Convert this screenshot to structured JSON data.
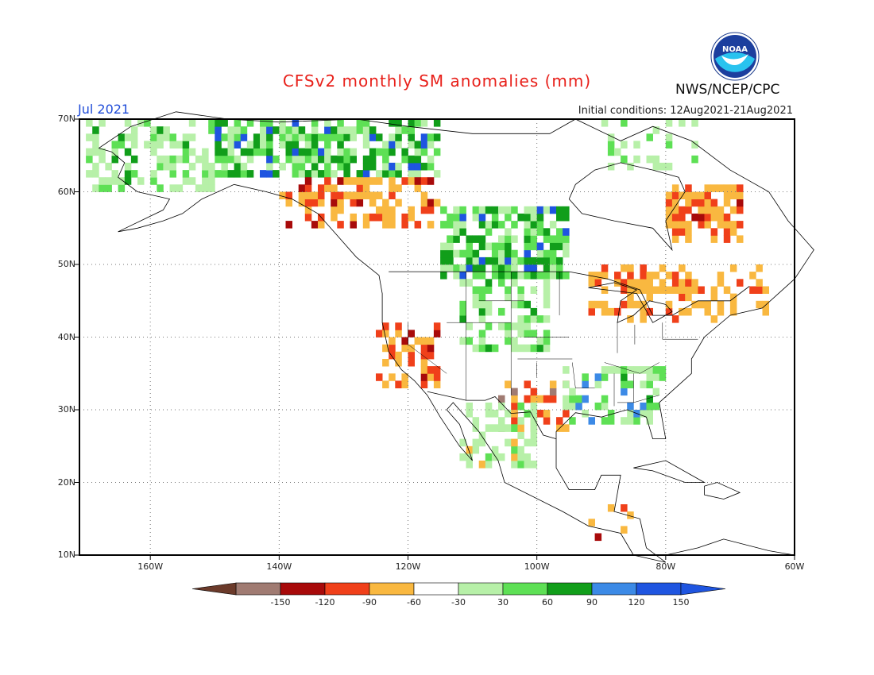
{
  "header": {
    "title": "CFSv2 monthly SM anomalies (mm)",
    "month": "Jul 2021",
    "initial_conditions": "Initial conditions: 12Aug2021-21Aug2021",
    "agency": "NWS/NCEP/CPC",
    "logo_text": "NOAA"
  },
  "map": {
    "projection": "cylindrical",
    "lon_range": [
      -171,
      -60
    ],
    "lat_range": [
      10,
      70
    ],
    "lat_labels": [
      "70N",
      "60N",
      "50N",
      "40N",
      "30N",
      "20N",
      "10N"
    ],
    "lon_labels": [
      "160W",
      "140W",
      "120W",
      "100W",
      "80W",
      "60W"
    ],
    "gridlines": "dotted"
  },
  "colorbar": {
    "labels": [
      "-150",
      "-120",
      "-90",
      "-60",
      "-30",
      "30",
      "60",
      "90",
      "120",
      "150"
    ],
    "colors": [
      "#6b3a2a",
      "#a07b72",
      "#a80a0a",
      "#f0401a",
      "#f9b840",
      "#ffffff",
      "#b7f0a8",
      "#5ee055",
      "#119e1a",
      "#3c8ae6",
      "#1f55e0"
    ]
  },
  "chart_data": {
    "type": "heatmap",
    "title": "CFSv2 monthly SM anomalies (mm)",
    "units": "mm",
    "valid_month": "Jul 2021",
    "cell_size_deg": 1,
    "legend": "colorbar bottom",
    "regions": [
      {
        "lon": [
          -170,
          -150
        ],
        "lat": [
          60,
          70
        ],
        "value": 45,
        "pattern": "patchy"
      },
      {
        "lon": [
          -150,
          -115
        ],
        "lat": [
          62,
          70
        ],
        "value": 75,
        "pattern": "dense"
      },
      {
        "lon": [
          -140,
          -115
        ],
        "lat": [
          55,
          62
        ],
        "value": -45,
        "pattern": "patchy"
      },
      {
        "lon": [
          -115,
          -95
        ],
        "lat": [
          48,
          58
        ],
        "value": 80,
        "pattern": "dense"
      },
      {
        "lon": [
          -90,
          -75
        ],
        "lat": [
          63,
          70
        ],
        "value": 40,
        "pattern": "sparse"
      },
      {
        "lon": [
          -80,
          -68
        ],
        "lat": [
          53,
          61
        ],
        "value": -50,
        "pattern": "dense"
      },
      {
        "lon": [
          -92,
          -64
        ],
        "lat": [
          42,
          50
        ],
        "value": -40,
        "pattern": "patchy"
      },
      {
        "lon": [
          -125,
          -115
        ],
        "lat": [
          33,
          42
        ],
        "value": -50,
        "pattern": "patchy"
      },
      {
        "lon": [
          -112,
          -98
        ],
        "lat": [
          38,
          48
        ],
        "value": 45,
        "pattern": "patchy"
      },
      {
        "lon": [
          -106,
          -95
        ],
        "lat": [
          27,
          34
        ],
        "value": -60,
        "pattern": "patchy"
      },
      {
        "lon": [
          -96,
          -80
        ],
        "lat": [
          28,
          36
        ],
        "value": 60,
        "pattern": "patchy"
      },
      {
        "lon": [
          -112,
          -100
        ],
        "lat": [
          22,
          31
        ],
        "value": 30,
        "pattern": "patchy"
      },
      {
        "lon": [
          -92,
          -85
        ],
        "lat": [
          12,
          17
        ],
        "value": -45,
        "pattern": "sparse"
      }
    ]
  }
}
